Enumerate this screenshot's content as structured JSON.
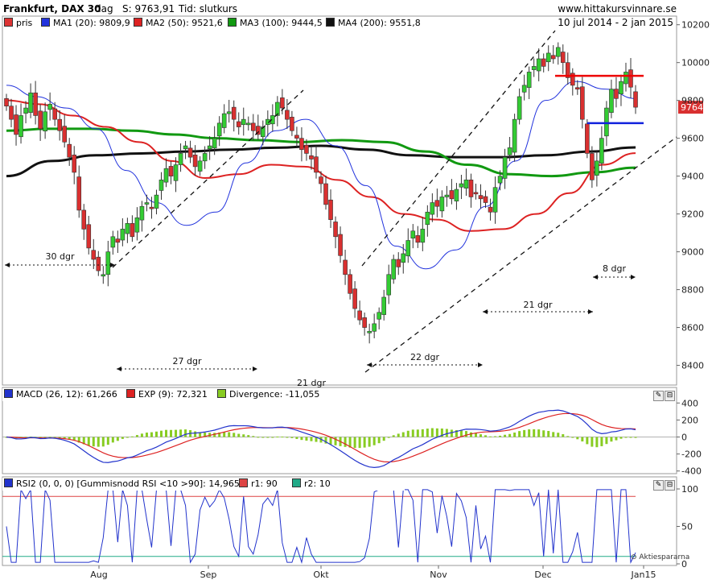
{
  "header": {
    "title": "Frankfurt, DAX 30",
    "period": "dag",
    "last_label": "S: 9763,91",
    "time_label": "Tid: slutkurs",
    "site": "www.hittakursvinnare.se",
    "date_range": "10 jul 2014 - 2 jan 2015"
  },
  "colors": {
    "up": "#33cc33",
    "down": "#d93030",
    "ma20": "#2233dd",
    "ma50": "#dd2222",
    "ma100": "#119911",
    "ma200": "#111111",
    "macd": "#2233cc",
    "signal": "#dd2222",
    "divergence": "#88cc22",
    "rsi": "#2233cc",
    "r1": "#dd4444",
    "r2": "#22aa88"
  },
  "price_panel": {
    "legend": [
      {
        "label": "pris",
        "color": "#dd3333"
      },
      {
        "label": "MA1 (20): 9809,9",
        "color": "#2233dd"
      },
      {
        "label": "MA2 (50): 9521,6",
        "color": "#dd2222"
      },
      {
        "label": "MA3 (100): 9444,5",
        "color": "#119911"
      },
      {
        "label": "MA4 (200): 9551,8",
        "color": "#111111"
      }
    ],
    "last_price_tag": "9764",
    "y_ticks": [
      "10200",
      "10000",
      "9800",
      "9600",
      "9400",
      "9200",
      "9000",
      "8800",
      "8600",
      "8400"
    ],
    "annotations": [
      "30 dgr",
      "27 dgr",
      "21 dgr",
      "22 dgr",
      "21 dgr",
      "8 dgr"
    ]
  },
  "macd_panel": {
    "legend": [
      {
        "label": "MACD (26, 12): 61,266",
        "color": "#2233cc"
      },
      {
        "label": "EXP (9): 72,321",
        "color": "#dd2222"
      },
      {
        "label": "Divergence: -11,055",
        "color": "#88cc22"
      }
    ],
    "y_ticks": [
      "400",
      "200",
      "0",
      "-200",
      "-400"
    ]
  },
  "rsi_panel": {
    "legend": [
      {
        "label": "RSI2 (0, 0, 0) [Gummisnodd RSI <10 >90]: 14,965",
        "color": "#2233cc"
      },
      {
        "label": "r1: 90",
        "color": "#dd4444"
      },
      {
        "label": "r2: 10",
        "color": "#22aa88"
      }
    ],
    "y_ticks": [
      "100",
      "50",
      "0"
    ],
    "watermark": "Aktiespararna"
  },
  "x_labels": [
    "Aug",
    "Sep",
    "Okt",
    "Nov",
    "Dec",
    "Jan15"
  ],
  "chart_data": {
    "type": "candlestick",
    "title": "Frankfurt, DAX 30",
    "ylim": [
      8300,
      10250
    ],
    "closes": [
      9770,
      9700,
      9620,
      9720,
      9760,
      9840,
      9720,
      9650,
      9740,
      9780,
      9700,
      9640,
      9580,
      9500,
      9420,
      9220,
      9120,
      9020,
      8960,
      8900,
      8880,
      9000,
      9080,
      9050,
      9120,
      9150,
      9080,
      9180,
      9240,
      9260,
      9230,
      9300,
      9380,
      9440,
      9400,
      9460,
      9520,
      9560,
      9500,
      9450,
      9480,
      9520,
      9560,
      9600,
      9680,
      9730,
      9740,
      9700,
      9660,
      9700,
      9680,
      9640,
      9620,
      9660,
      9700,
      9720,
      9790,
      9760,
      9700,
      9640,
      9600,
      9540,
      9520,
      9490,
      9420,
      9360,
      9250,
      9170,
      9080,
      8980,
      8880,
      8780,
      8700,
      8640,
      8600,
      8580,
      8620,
      8680,
      8760,
      8880,
      8960,
      8920,
      8990,
      9060,
      9110,
      9050,
      9120,
      9210,
      9260,
      9240,
      9290,
      9300,
      9280,
      9330,
      9360,
      9380,
      9290,
      9310,
      9280,
      9260,
      9210,
      9340,
      9400,
      9500,
      9550,
      9700,
      9820,
      9880,
      9950,
      9980,
      10020,
      9980,
      10050,
      10020,
      10080,
      10000,
      9920,
      9880,
      9860,
      9700,
      9520,
      9380,
      9480,
      9600,
      9760,
      9860,
      9810,
      9900,
      9950,
      9870,
      9764
    ],
    "ma20": [
      9880,
      9820,
      9760,
      9650,
      9430,
      9260,
      9140,
      9210,
      9470,
      9640,
      9700,
      9560,
      9350,
      9030,
      8910,
      9010,
      9240,
      9480,
      9800,
      9900,
      9860,
      9810
    ],
    "ma50": [
      9800,
      9780,
      9720,
      9660,
      9580,
      9480,
      9390,
      9410,
      9460,
      9450,
      9380,
      9290,
      9200,
      9170,
      9110,
      9120,
      9200,
      9310,
      9460,
      9521.6
    ],
    "ma100": [
      9640,
      9650,
      9650,
      9640,
      9620,
      9600,
      9590,
      9580,
      9590,
      9580,
      9530,
      9460,
      9410,
      9400,
      9420,
      9444.5
    ],
    "ma200": [
      9400,
      9480,
      9510,
      9520,
      9530,
      9540,
      9550,
      9560,
      9540,
      9510,
      9500,
      9500,
      9510,
      9530,
      9551.8
    ],
    "macd": {
      "macd": 61.266,
      "signal": 72.321,
      "divergence": -11.055
    },
    "rsi": {
      "last": 14.965,
      "r1": 90,
      "r2": 10
    },
    "x_ticks": [
      "Aug",
      "Sep",
      "Okt",
      "Nov",
      "Dec",
      "Jan15"
    ]
  }
}
